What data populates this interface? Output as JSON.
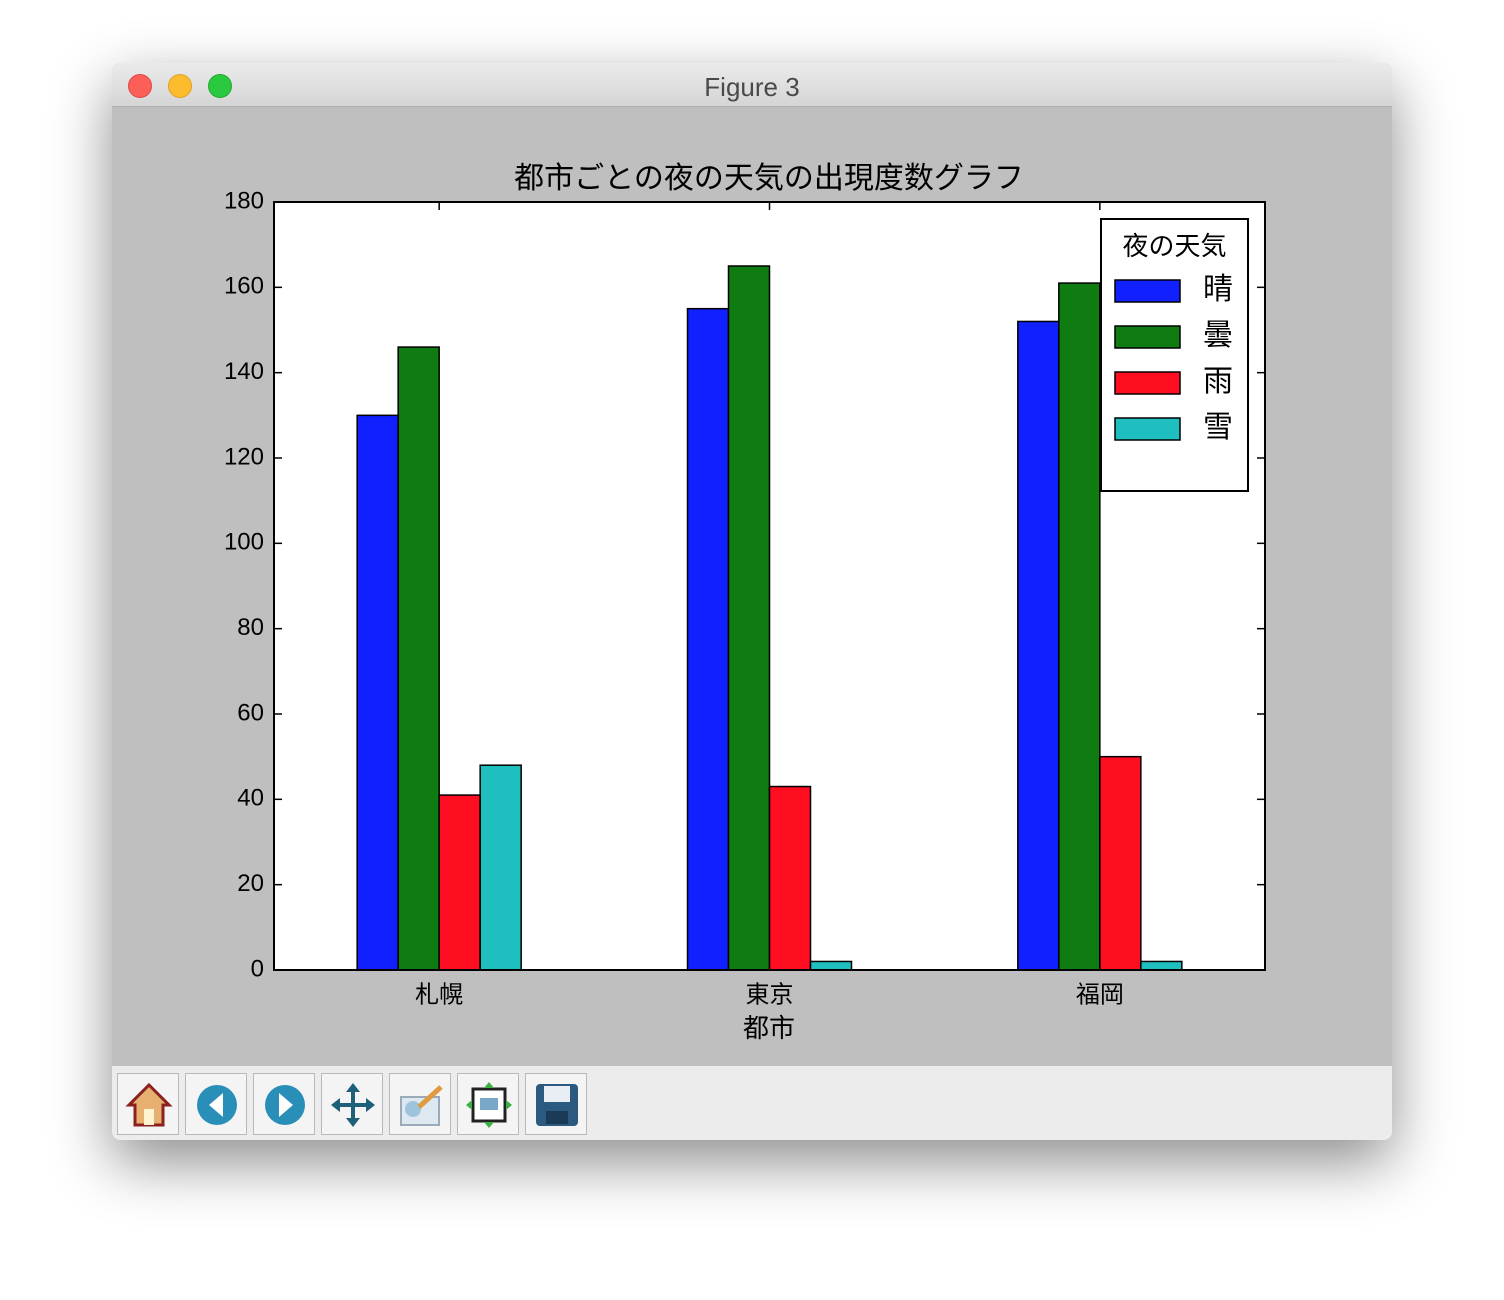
{
  "window": {
    "title": "Figure 3"
  },
  "chart_data": {
    "type": "bar",
    "title": "都市ごとの夜の天気の出現度数グラフ",
    "x_label": "都市",
    "categories": [
      "札幌",
      "東京",
      "福岡"
    ],
    "series": [
      {
        "name": "晴",
        "color": "#1020ff",
        "values": [
          130,
          155,
          152
        ]
      },
      {
        "name": "曇",
        "color": "#0f7c12",
        "values": [
          146,
          165,
          161
        ]
      },
      {
        "name": "雨",
        "color": "#ff0d20",
        "values": [
          41,
          43,
          50
        ]
      },
      {
        "name": "雪",
        "color": "#20bfbf",
        "values": [
          48,
          2,
          2
        ]
      }
    ],
    "ylim": [
      0,
      180
    ],
    "yticks": [
      0,
      20,
      40,
      60,
      80,
      100,
      120,
      140,
      160,
      180
    ],
    "legend_title": "夜の天気",
    "legend_loc": "upper right",
    "grid": false
  }
}
